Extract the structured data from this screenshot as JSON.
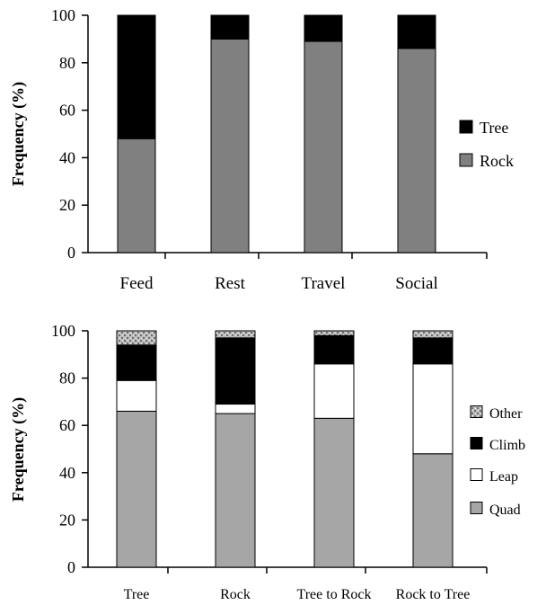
{
  "chart_data": [
    {
      "type": "bar",
      "stacked": true,
      "ylabel": "Frequency (%)",
      "xlabel": "",
      "ylim": [
        0,
        100
      ],
      "yticks": [
        0,
        20,
        40,
        60,
        80,
        100
      ],
      "categories": [
        "Feed",
        "Rest",
        "Travel",
        "Social"
      ],
      "series": [
        {
          "name": "Rock",
          "values": [
            48,
            90,
            89,
            86
          ],
          "color": "#808080"
        },
        {
          "name": "Tree",
          "values": [
            52,
            10,
            11,
            14
          ],
          "color": "#000000"
        }
      ],
      "legend": [
        "Tree",
        "Rock"
      ],
      "legend_position": "right",
      "grid": false
    },
    {
      "type": "bar",
      "stacked": true,
      "ylabel": "Frequency (%)",
      "xlabel": "",
      "ylim": [
        0,
        100
      ],
      "yticks": [
        0,
        20,
        40,
        60,
        80,
        100
      ],
      "categories": [
        "Tree",
        "Rock",
        "Tree to Rock",
        "Rock to Tree"
      ],
      "series": [
        {
          "name": "Quad",
          "values": [
            66,
            65,
            63,
            48
          ],
          "color": "#a6a6a6"
        },
        {
          "name": "Leap",
          "values": [
            13,
            4,
            23,
            38
          ],
          "color": "#ffffff"
        },
        {
          "name": "Climb",
          "values": [
            15,
            28,
            12,
            11
          ],
          "color": "#000000"
        },
        {
          "name": "Other",
          "values": [
            6,
            3,
            2,
            3
          ],
          "color": "#b3b3b3",
          "pattern": "speckled"
        }
      ],
      "legend": [
        "Other",
        "Climb",
        "Leap",
        "Quad"
      ],
      "legend_position": "right",
      "grid": false
    }
  ]
}
